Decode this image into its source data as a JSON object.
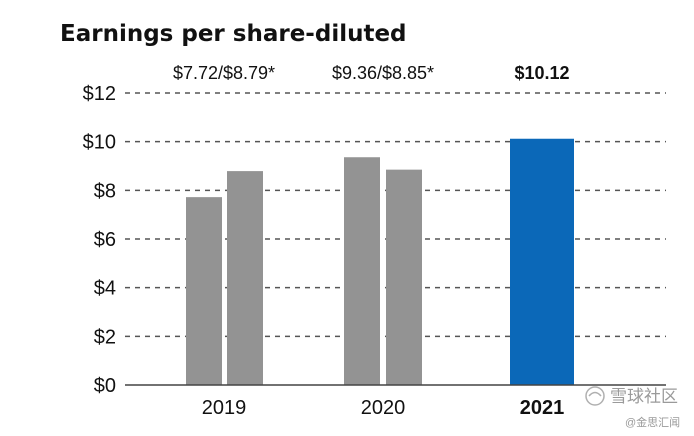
{
  "chart_data": {
    "type": "bar",
    "title": "Earnings per share-diluted",
    "categories": [
      "2019",
      "2020",
      "2021"
    ],
    "bars": [
      {
        "category": "2019",
        "value": 7.72,
        "color": "#939393"
      },
      {
        "category": "2019",
        "value": 8.79,
        "color": "#939393"
      },
      {
        "category": "2020",
        "value": 9.36,
        "color": "#939393"
      },
      {
        "category": "2020",
        "value": 8.85,
        "color": "#939393"
      },
      {
        "category": "2021",
        "value": 10.12,
        "color": "#0b68b8"
      }
    ],
    "annotations": [
      "$7.72/$8.79*",
      "$9.36/$8.85*",
      "$10.12"
    ],
    "highlight_category": "2021",
    "y_ticks": [
      "$0",
      "$2",
      "$4",
      "$6",
      "$8",
      "$10",
      "$12"
    ],
    "y_tick_values": [
      0,
      2,
      4,
      6,
      8,
      10,
      12
    ],
    "ylim": [
      0,
      12
    ],
    "grid": "dashed horizontal",
    "xlabel": "",
    "ylabel": ""
  },
  "watermark": {
    "main": "雪球社区",
    "sub": "@金思汇闻"
  },
  "colors": {
    "gray_bar": "#939393",
    "highlight_bar": "#0b68b8",
    "text": "#111111",
    "grid": "#555555"
  }
}
